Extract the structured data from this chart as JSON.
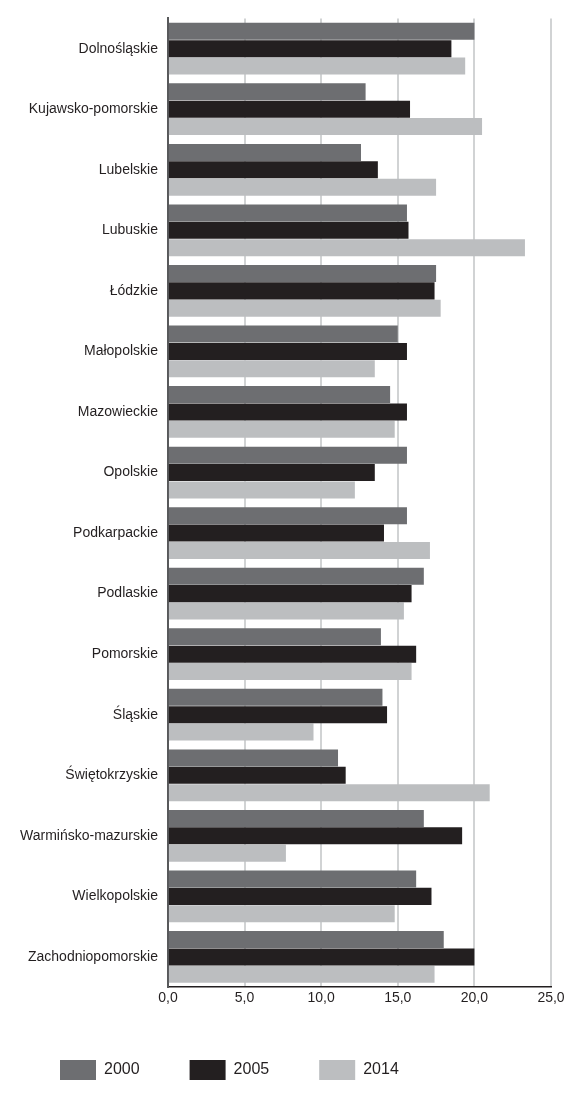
{
  "chart_data": {
    "type": "bar",
    "orientation": "horizontal",
    "categories": [
      "Dolnośląskie",
      "Kujawsko-pomorskie",
      "Lubelskie",
      "Lubuskie",
      "Łódzkie",
      "Małopolskie",
      "Mazowieckie",
      "Opolskie",
      "Podkarpackie",
      "Podlaskie",
      "Pomorskie",
      "Śląskie",
      "Świętokrzyskie",
      "Warmińsko-mazurskie",
      "Wielkopolskie",
      "Zachodniopomorskie"
    ],
    "series": [
      {
        "name": "2000",
        "color": "#6d6e71",
        "values": [
          20.0,
          12.9,
          12.6,
          15.6,
          17.5,
          15.0,
          14.5,
          15.6,
          15.6,
          16.7,
          13.9,
          14.0,
          11.1,
          16.7,
          16.2,
          18.0
        ]
      },
      {
        "name": "2005",
        "color": "#231f20",
        "values": [
          18.5,
          15.8,
          13.7,
          15.7,
          17.4,
          15.6,
          15.6,
          13.5,
          14.1,
          15.9,
          16.2,
          14.3,
          11.6,
          19.2,
          17.2,
          20.0
        ]
      },
      {
        "name": "2014",
        "color": "#bcbec0",
        "values": [
          19.4,
          20.5,
          17.5,
          23.3,
          17.8,
          13.5,
          14.8,
          12.2,
          17.1,
          15.4,
          15.9,
          9.5,
          21.0,
          7.7,
          14.8,
          17.4
        ]
      }
    ],
    "xlim": [
      0,
      25
    ],
    "xticks": [
      {
        "value": 0,
        "label": "0,0"
      },
      {
        "value": 5,
        "label": "5,0"
      },
      {
        "value": 10,
        "label": "10,0"
      },
      {
        "value": 15,
        "label": "15,0"
      },
      {
        "value": 20,
        "label": "20,0"
      },
      {
        "value": 25,
        "label": "25,0"
      }
    ],
    "grid": "x",
    "legend": "bottom"
  }
}
